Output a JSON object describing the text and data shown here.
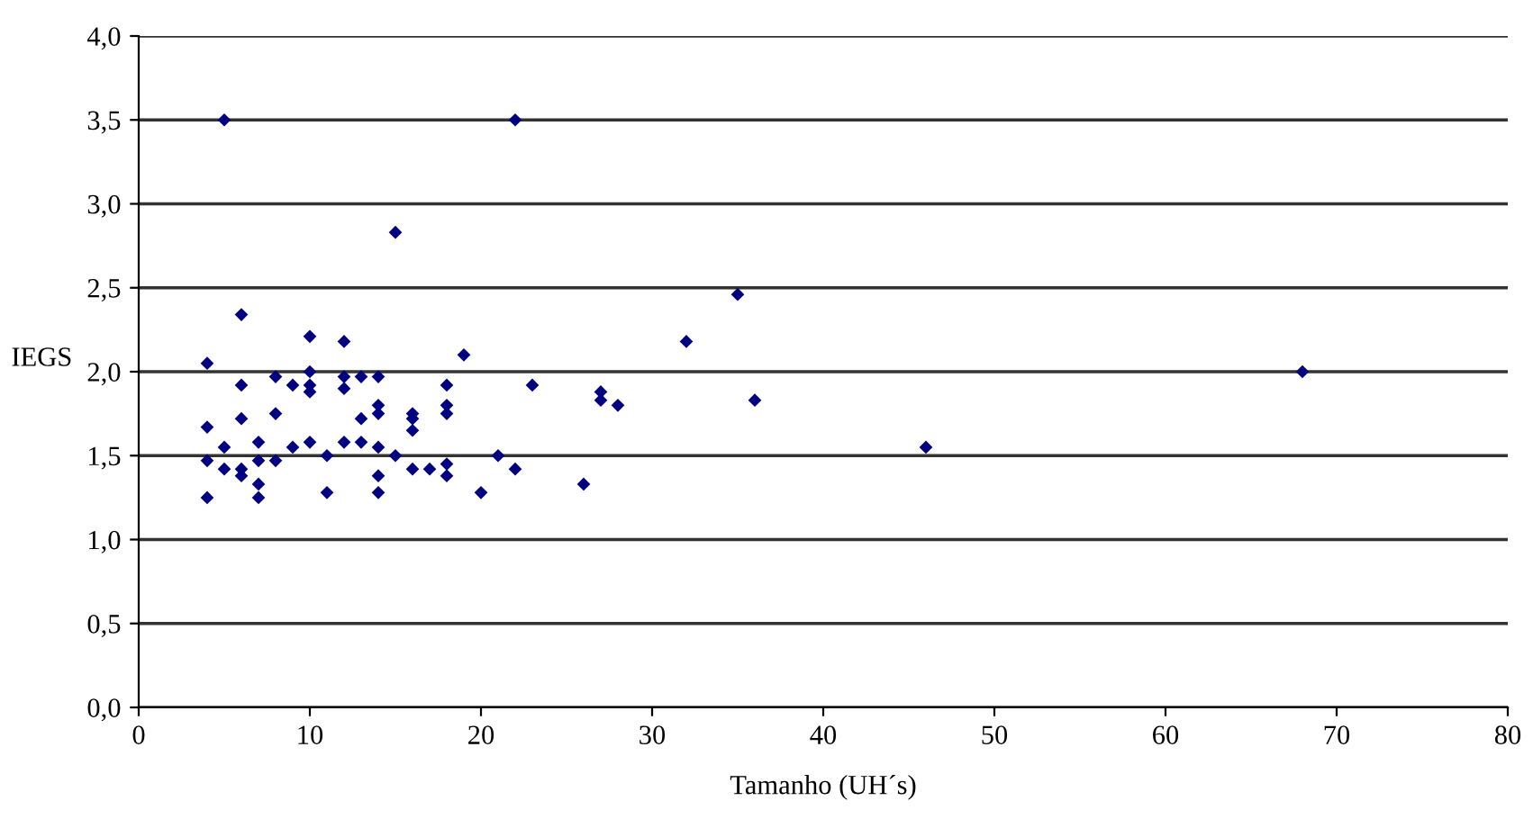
{
  "chart_data": {
    "type": "scatter",
    "xlabel": "Tamanho (UH´s)",
    "ylabel": "IEGS",
    "marker": "diamond",
    "grid": "y",
    "xlim": [
      0,
      80
    ],
    "xticks": [
      0,
      10,
      20,
      30,
      40,
      50,
      60,
      70,
      80
    ],
    "ylim": [
      0,
      4
    ],
    "yticks": [
      {
        "value": 0,
        "label": "0,0"
      },
      {
        "value": 0.5,
        "label": "0,5"
      },
      {
        "value": 1,
        "label": "1,0"
      },
      {
        "value": 1.5,
        "label": "1,5"
      },
      {
        "value": 2,
        "label": "2,0"
      },
      {
        "value": 2.5,
        "label": "2,5"
      },
      {
        "value": 3,
        "label": "3,0"
      },
      {
        "value": 3.5,
        "label": "3,5"
      },
      {
        "value": 4,
        "label": "4,0"
      }
    ],
    "series": [
      {
        "color": "#000080",
        "x": [
          4,
          4,
          4,
          4,
          5,
          5,
          5,
          6,
          6,
          6,
          6,
          6,
          7,
          7,
          7,
          7,
          8,
          8,
          8,
          9,
          9,
          10,
          10,
          10,
          10,
          10,
          11,
          11,
          12,
          12,
          12,
          12,
          13,
          13,
          13,
          14,
          14,
          14,
          14,
          14,
          14,
          15,
          15,
          16,
          16,
          16,
          16,
          17,
          18,
          18,
          18,
          18,
          18,
          19,
          20,
          21,
          22,
          22,
          23,
          26,
          27,
          27,
          28,
          32,
          35,
          36,
          46,
          68
        ],
        "values": [
          2.05,
          1.67,
          1.47,
          1.25,
          3.5,
          1.55,
          1.42,
          2.34,
          1.92,
          1.72,
          1.42,
          1.38,
          1.58,
          1.47,
          1.33,
          1.25,
          1.97,
          1.75,
          1.47,
          1.92,
          1.55,
          2.21,
          2.0,
          1.92,
          1.88,
          1.58,
          1.5,
          1.28,
          2.18,
          1.97,
          1.9,
          1.58,
          1.97,
          1.72,
          1.58,
          1.97,
          1.8,
          1.75,
          1.55,
          1.38,
          1.28,
          2.83,
          1.5,
          1.75,
          1.72,
          1.65,
          1.42,
          1.42,
          1.92,
          1.8,
          1.75,
          1.45,
          1.38,
          2.1,
          1.28,
          1.5,
          3.5,
          1.42,
          1.92,
          1.33,
          1.88,
          1.83,
          1.8,
          2.18,
          2.46,
          1.83,
          1.55,
          2.0
        ]
      }
    ]
  }
}
